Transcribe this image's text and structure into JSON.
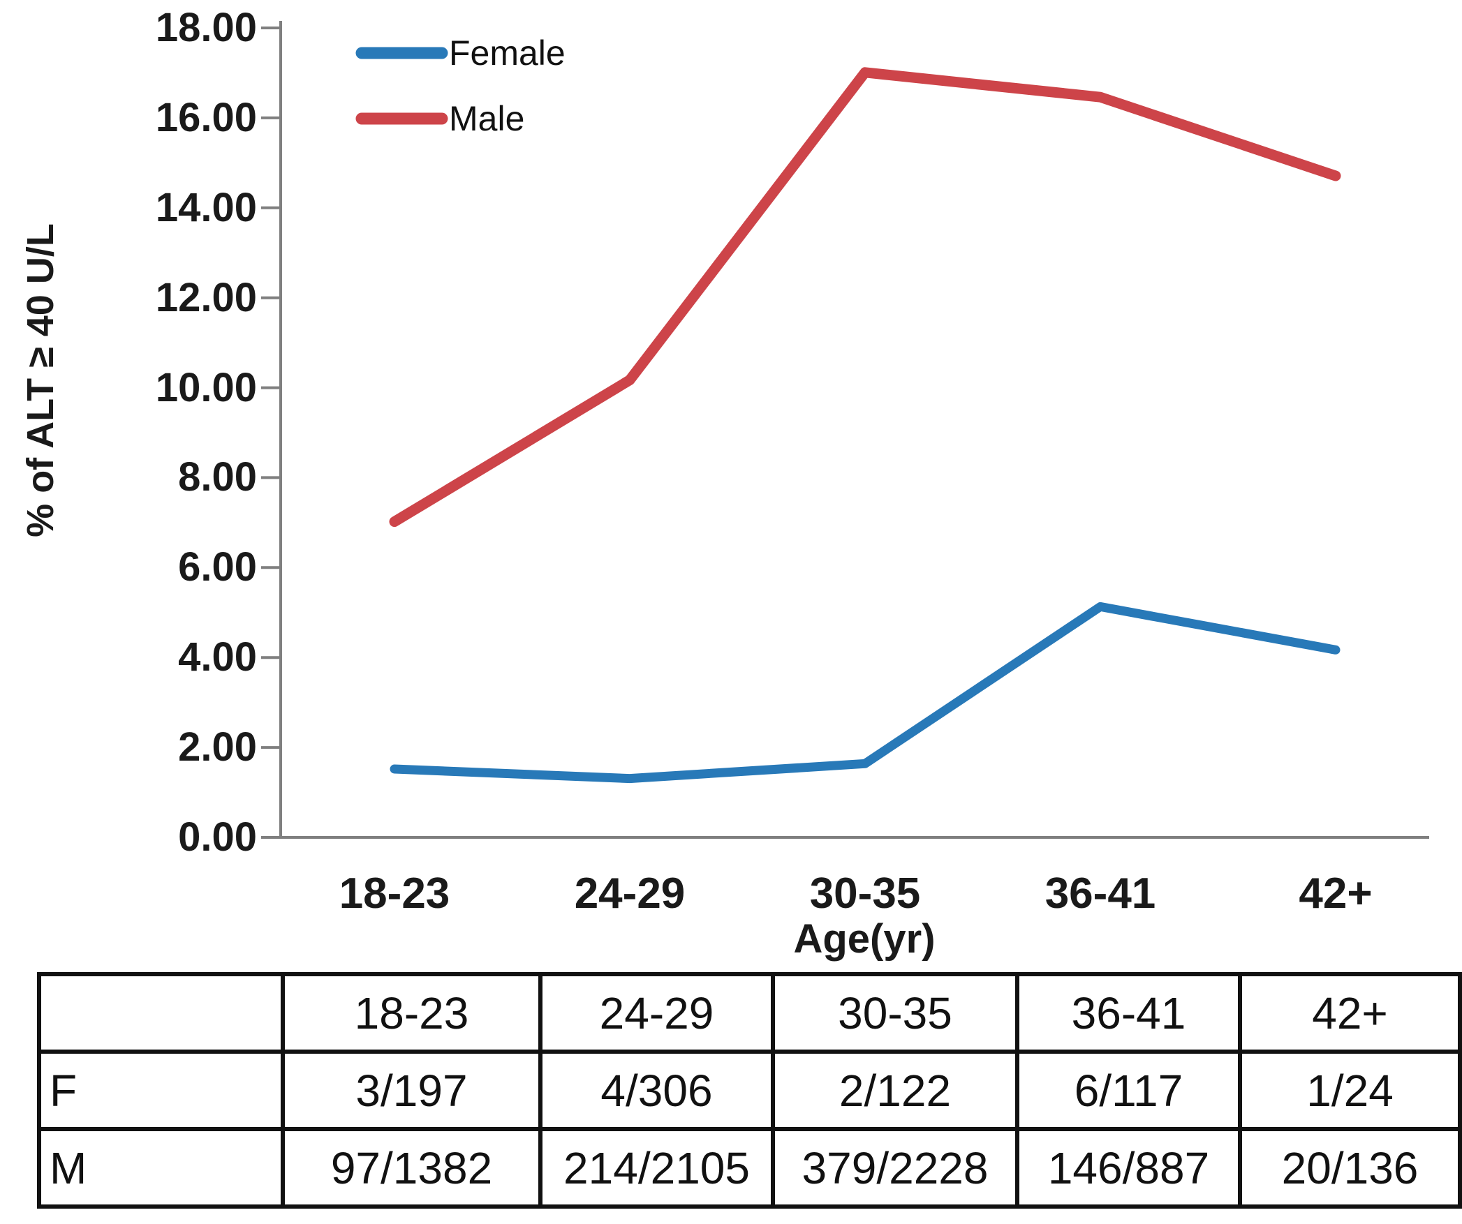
{
  "chart_data": {
    "type": "line",
    "title": "",
    "xlabel": "Age(yr)",
    "ylabel": "% of ALT ≥ 40 U/L",
    "categories": [
      "18-23",
      "24-29",
      "30-35",
      "36-41",
      "42+"
    ],
    "series": [
      {
        "name": "Female",
        "color": "#2879b8",
        "values": [
          1.52,
          1.31,
          1.64,
          5.13,
          4.17
        ]
      },
      {
        "name": "Male",
        "color": "#cd4449",
        "values": [
          7.02,
          10.17,
          17.01,
          16.46,
          14.71
        ]
      }
    ],
    "ylim": [
      0,
      18
    ],
    "y_tick_step": 2,
    "y_tick_labels": [
      "18.00",
      "16.00",
      "14.00",
      "12.00",
      "10.00",
      "8.00",
      "6.00",
      "4.00",
      "2.00",
      "0.00"
    ],
    "legend_position": "top-left",
    "grid": false
  },
  "table": {
    "header_row": [
      "",
      "18-23",
      "24-29",
      "30-35",
      "36-41",
      "42+"
    ],
    "rows": [
      {
        "label": "F",
        "cells": [
          "3/197",
          "4/306",
          "2/122",
          "6/117",
          "1/24"
        ]
      },
      {
        "label": "M",
        "cells": [
          "97/1382",
          "214/2105",
          "379/2228",
          "146/887",
          "20/136"
        ]
      }
    ]
  },
  "colors": {
    "female_line": "#2879b8",
    "male_line": "#cd4449",
    "axis": "#7f7f7f",
    "text": "#1a1a1a",
    "table_border": "#111111"
  }
}
